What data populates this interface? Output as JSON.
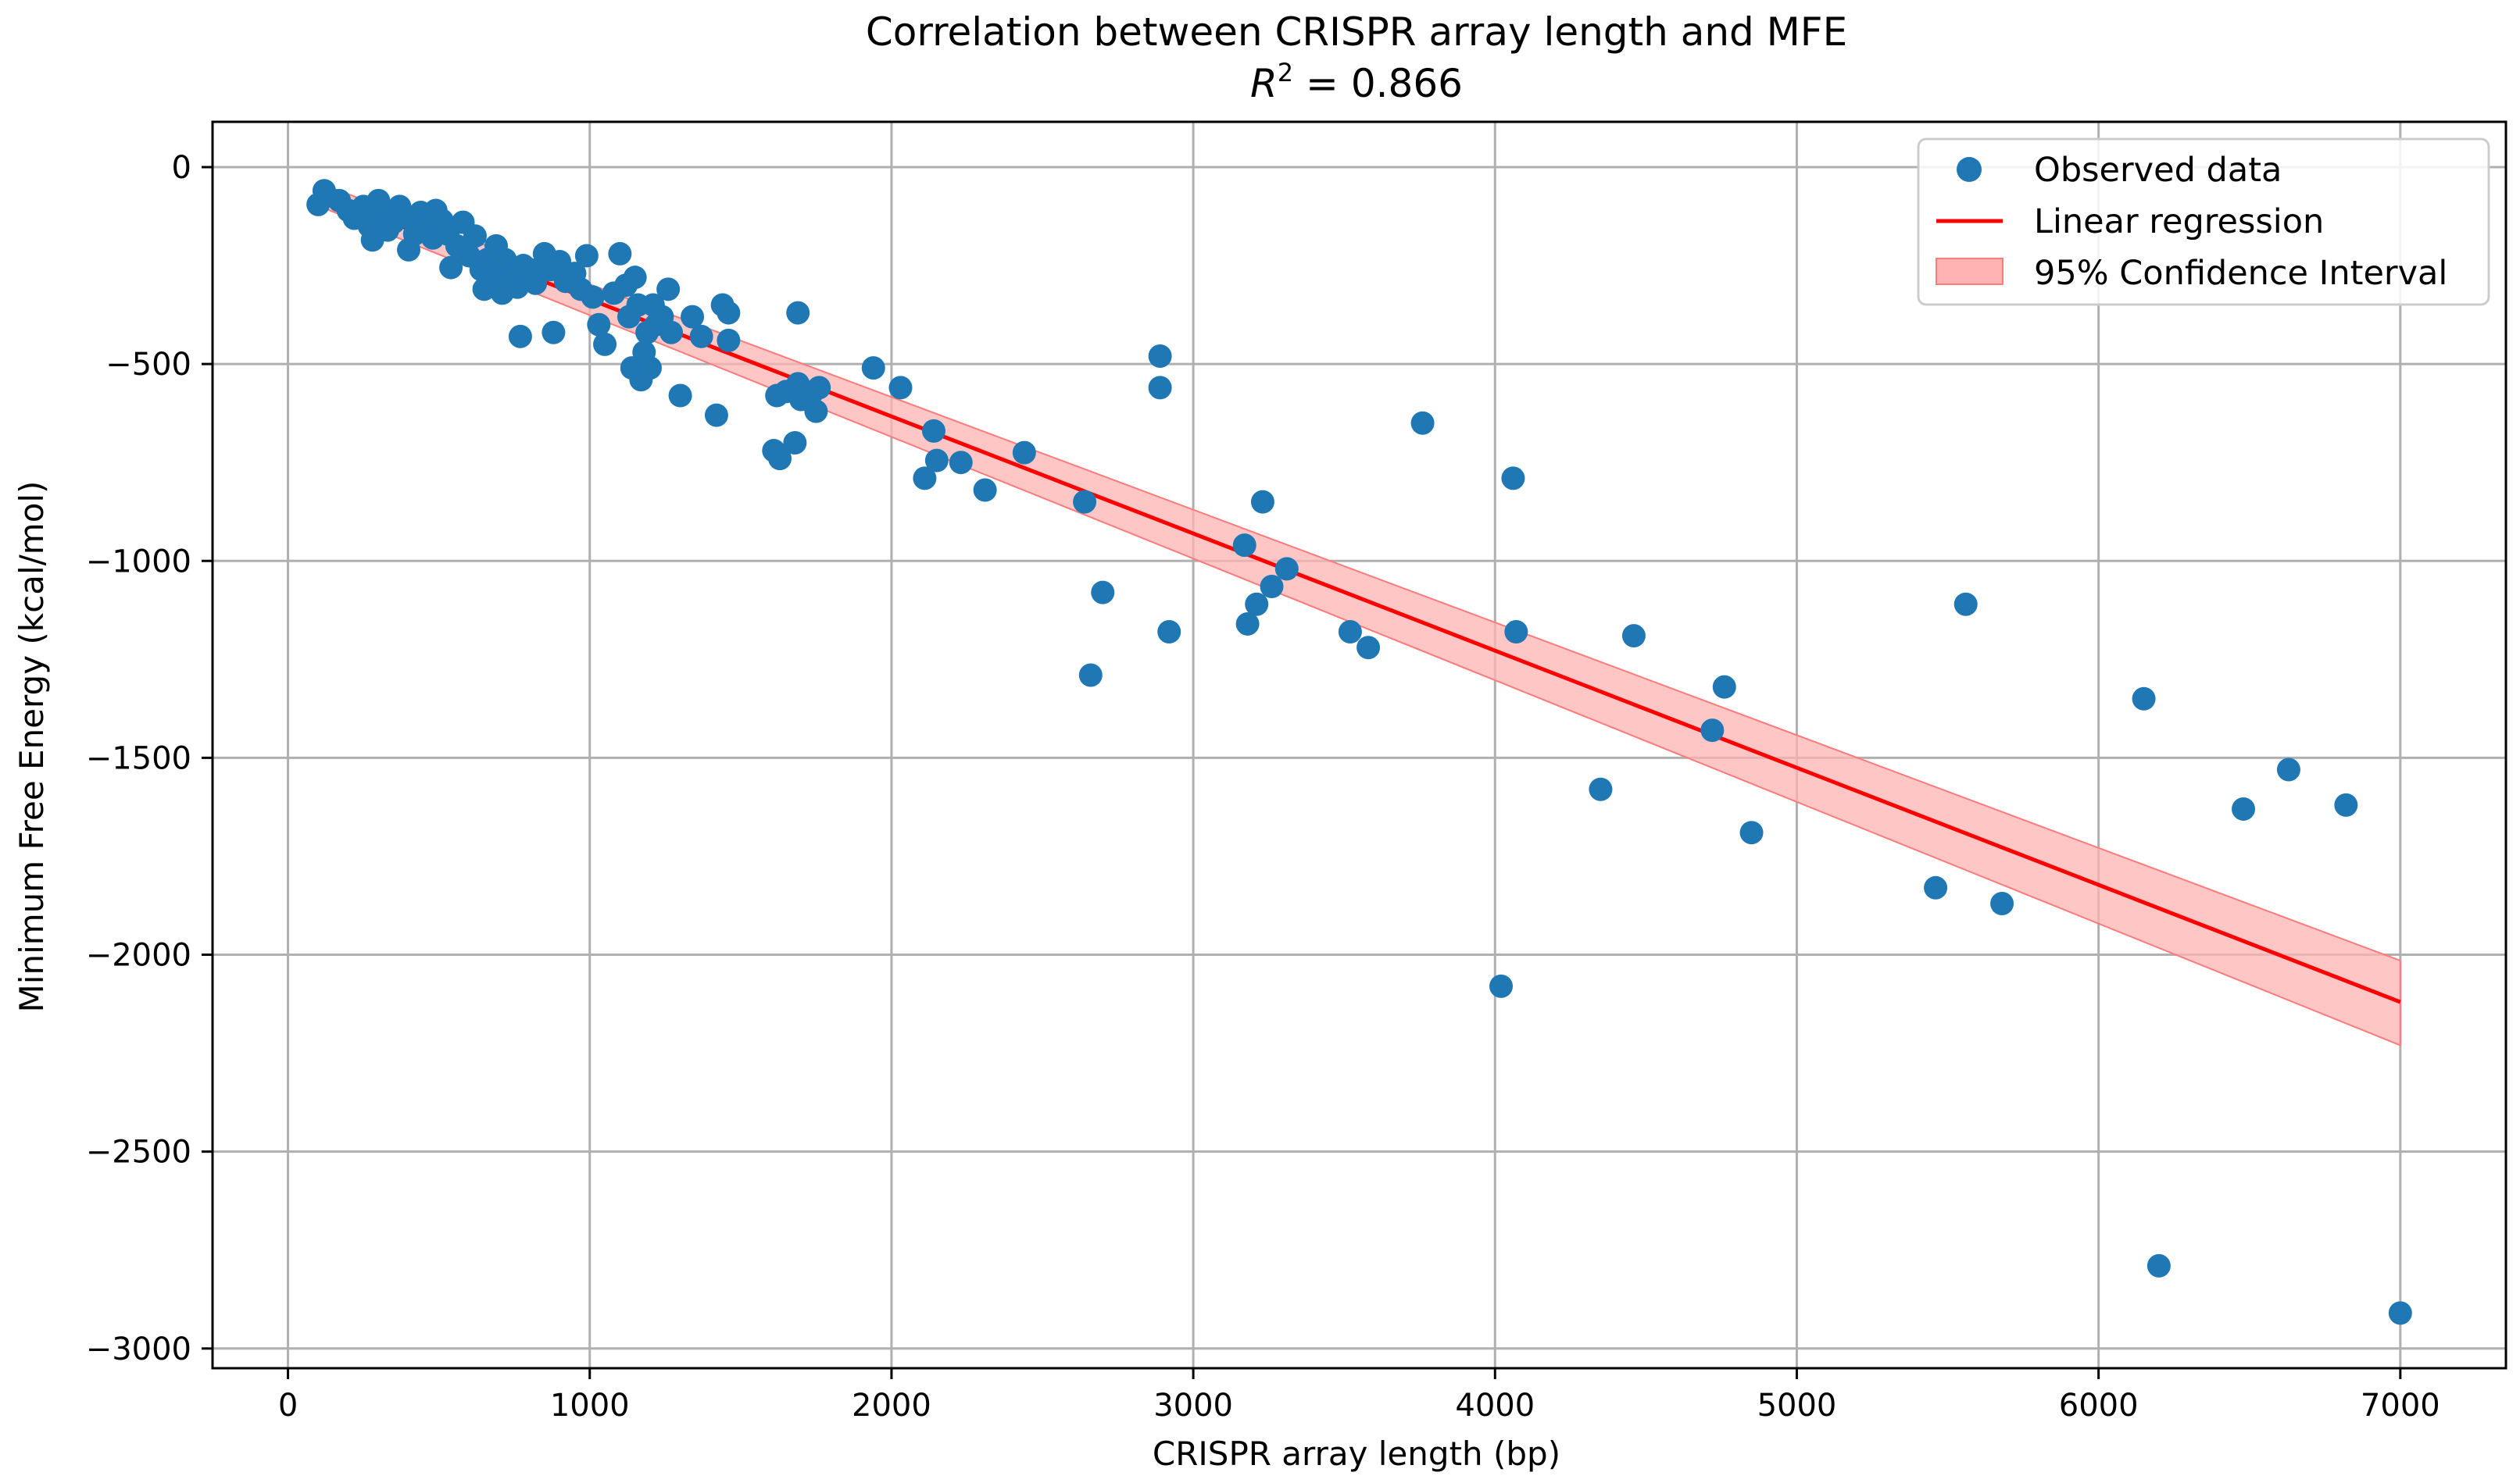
{
  "chart_data": {
    "type": "scatter",
    "title": "Correlation between CRISPR array length and MFE",
    "subtitle": {
      "symbol": "R",
      "exponent": "2",
      "rest": " = 0.866"
    },
    "xlabel": "CRISPR array length (bp)",
    "ylabel": "Minimum Free Energy (kcal/mol)",
    "xlim": [
      -250,
      7350
    ],
    "ylim": [
      -3050,
      115
    ],
    "grid": true,
    "legend_position": "top-right",
    "x_ticks": [
      0,
      1000,
      2000,
      3000,
      4000,
      5000,
      6000,
      7000
    ],
    "x_tick_labels": [
      "0",
      "1000",
      "2000",
      "3000",
      "4000",
      "5000",
      "6000",
      "7000"
    ],
    "y_ticks": [
      0,
      -500,
      -1000,
      -1500,
      -2000,
      -2500,
      -3000
    ],
    "y_tick_labels": [
      "0",
      "−500",
      "−1000",
      "−1500",
      "−2000",
      "−2500",
      "−3000"
    ],
    "colors": {
      "points": "#1f77b4",
      "regression": "#ff0000",
      "ci_fill": "#ffb3b3",
      "ci_edge": "#ff7a7a",
      "grid": "#b0b0b0"
    },
    "series": [
      {
        "name": "Observed data",
        "kind": "scatter",
        "points": [
          [
            100,
            -95
          ],
          [
            120,
            -60
          ],
          [
            170,
            -85
          ],
          [
            200,
            -110
          ],
          [
            220,
            -130
          ],
          [
            250,
            -100
          ],
          [
            270,
            -150
          ],
          [
            280,
            -185
          ],
          [
            300,
            -85
          ],
          [
            310,
            -120
          ],
          [
            330,
            -160
          ],
          [
            350,
            -140
          ],
          [
            370,
            -100
          ],
          [
            390,
            -125
          ],
          [
            400,
            -210
          ],
          [
            420,
            -170
          ],
          [
            440,
            -115
          ],
          [
            460,
            -150
          ],
          [
            480,
            -180
          ],
          [
            490,
            -110
          ],
          [
            510,
            -135
          ],
          [
            530,
            -170
          ],
          [
            540,
            -255
          ],
          [
            560,
            -200
          ],
          [
            580,
            -140
          ],
          [
            600,
            -225
          ],
          [
            620,
            -175
          ],
          [
            640,
            -260
          ],
          [
            650,
            -310
          ],
          [
            660,
            -235
          ],
          [
            680,
            -290
          ],
          [
            690,
            -200
          ],
          [
            700,
            -265
          ],
          [
            710,
            -320
          ],
          [
            720,
            -235
          ],
          [
            740,
            -280
          ],
          [
            760,
            -305
          ],
          [
            770,
            -430
          ],
          [
            780,
            -250
          ],
          [
            800,
            -260
          ],
          [
            820,
            -295
          ],
          [
            850,
            -220
          ],
          [
            870,
            -260
          ],
          [
            880,
            -420
          ],
          [
            900,
            -240
          ],
          [
            920,
            -290
          ],
          [
            950,
            -270
          ],
          [
            970,
            -310
          ],
          [
            990,
            -225
          ],
          [
            1010,
            -330
          ],
          [
            1030,
            -400
          ],
          [
            1050,
            -450
          ],
          [
            1080,
            -320
          ],
          [
            1100,
            -220
          ],
          [
            1120,
            -300
          ],
          [
            1130,
            -380
          ],
          [
            1140,
            -510
          ],
          [
            1150,
            -280
          ],
          [
            1160,
            -350
          ],
          [
            1170,
            -540
          ],
          [
            1180,
            -470
          ],
          [
            1190,
            -420
          ],
          [
            1200,
            -510
          ],
          [
            1210,
            -350
          ],
          [
            1220,
            -400
          ],
          [
            1240,
            -380
          ],
          [
            1260,
            -310
          ],
          [
            1270,
            -420
          ],
          [
            1300,
            -580
          ],
          [
            1340,
            -380
          ],
          [
            1370,
            -430
          ],
          [
            1420,
            -630
          ],
          [
            1440,
            -350
          ],
          [
            1460,
            -440
          ],
          [
            1460,
            -370
          ],
          [
            1610,
            -720
          ],
          [
            1620,
            -580
          ],
          [
            1630,
            -740
          ],
          [
            1650,
            -570
          ],
          [
            1680,
            -700
          ],
          [
            1690,
            -550
          ],
          [
            1700,
            -590
          ],
          [
            1740,
            -570
          ],
          [
            1760,
            -560
          ],
          [
            1750,
            -620
          ],
          [
            1690,
            -370
          ],
          [
            1940,
            -510
          ],
          [
            2030,
            -560
          ],
          [
            2110,
            -790
          ],
          [
            2140,
            -670
          ],
          [
            2150,
            -745
          ],
          [
            2230,
            -750
          ],
          [
            2310,
            -820
          ],
          [
            2440,
            -725
          ],
          [
            2640,
            -850
          ],
          [
            2660,
            -1290
          ],
          [
            2700,
            -1080
          ],
          [
            2890,
            -480
          ],
          [
            2890,
            -560
          ],
          [
            2920,
            -1180
          ],
          [
            3170,
            -960
          ],
          [
            3180,
            -1160
          ],
          [
            3210,
            -1110
          ],
          [
            3230,
            -850
          ],
          [
            3260,
            -1065
          ],
          [
            3310,
            -1020
          ],
          [
            3520,
            -1180
          ],
          [
            3580,
            -1220
          ],
          [
            3760,
            -650
          ],
          [
            4020,
            -2080
          ],
          [
            4060,
            -790
          ],
          [
            4070,
            -1180
          ],
          [
            4350,
            -1580
          ],
          [
            4460,
            -1190
          ],
          [
            4720,
            -1430
          ],
          [
            4760,
            -1320
          ],
          [
            4850,
            -1690
          ],
          [
            5460,
            -1830
          ],
          [
            5560,
            -1110
          ],
          [
            5680,
            -1870
          ],
          [
            6150,
            -1350
          ],
          [
            6200,
            -2790
          ],
          [
            6480,
            -1630
          ],
          [
            6630,
            -1530
          ],
          [
            6820,
            -1620
          ],
          [
            7000,
            -2910
          ]
        ]
      },
      {
        "name": "Linear regression",
        "kind": "line",
        "x": [
          100,
          7000
        ],
        "y": [
          -68,
          -2120
        ]
      },
      {
        "name": "95% Confidence Interval",
        "kind": "band",
        "x": [
          100,
          7000
        ],
        "upper": [
          -40,
          -2015
        ],
        "lower": [
          -98,
          -2230
        ]
      }
    ]
  }
}
